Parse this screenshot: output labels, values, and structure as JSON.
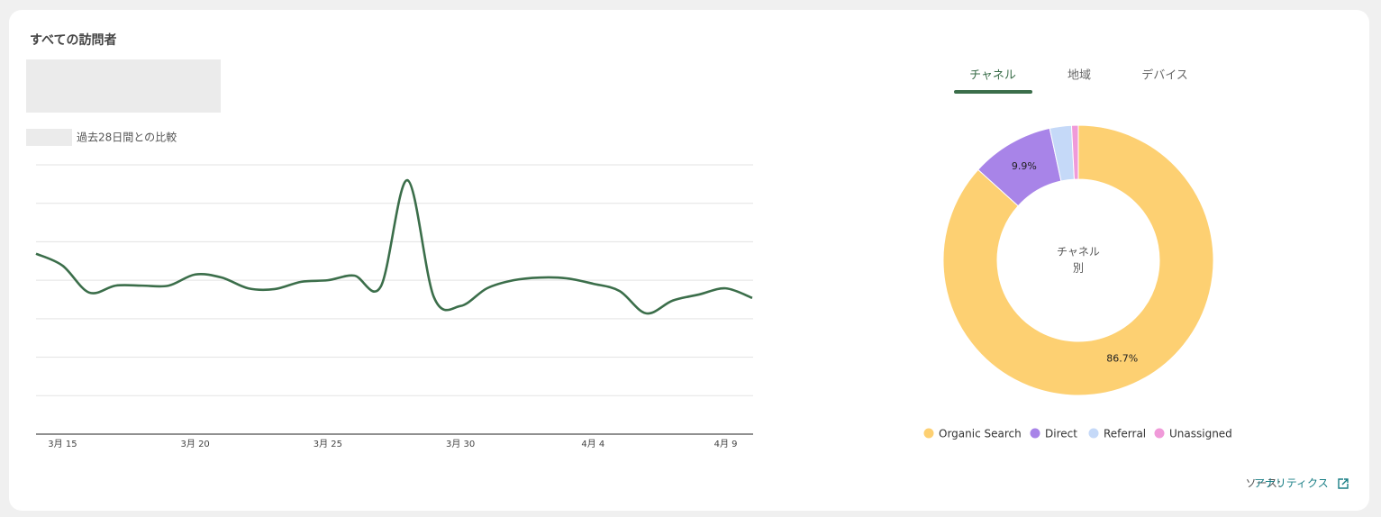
{
  "header": {
    "title": "すべての訪問者",
    "comparison": "過去28日間との比較"
  },
  "tabs": [
    "チャネル",
    "地域",
    "デバイス"
  ],
  "chart_data": [
    {
      "type": "line",
      "categories": [
        null,
        "3月 15",
        null,
        null,
        null,
        null,
        "3月 20",
        null,
        null,
        null,
        null,
        "3月 25",
        null,
        null,
        null,
        null,
        "3月 30",
        null,
        null,
        null,
        null,
        "4月 4",
        null,
        null,
        null,
        null,
        "4月 9",
        null
      ],
      "values": [
        4.69,
        4.38,
        3.68,
        3.86,
        3.86,
        3.86,
        4.15,
        4.07,
        3.79,
        3.77,
        3.96,
        4.0,
        4.12,
        3.84,
        6.6,
        3.56,
        3.33,
        3.79,
        4.0,
        4.07,
        4.05,
        3.91,
        3.72,
        3.14,
        3.47,
        3.63,
        3.79,
        3.54
      ],
      "color": "#3b6e4a",
      "ylim": [
        0,
        7
      ],
      "yticks": [
        0,
        1,
        2,
        3,
        4,
        5,
        6,
        7
      ],
      "grid": true
    },
    {
      "type": "donut",
      "center_label": [
        "チャネル",
        "別"
      ],
      "categories": [
        "Organic Search",
        "Direct",
        "Referral",
        "Unassigned"
      ],
      "values": [
        86.7,
        9.9,
        2.6,
        0.8
      ],
      "value_labels": [
        "86.7%",
        "9.9%",
        null,
        null
      ],
      "colors": [
        "#fdd072",
        "#a884e8",
        "#c5d9f8",
        "#f09ad9"
      ]
    }
  ],
  "footer": {
    "source_label": "ソース:",
    "source_link": "アナリティクス"
  }
}
